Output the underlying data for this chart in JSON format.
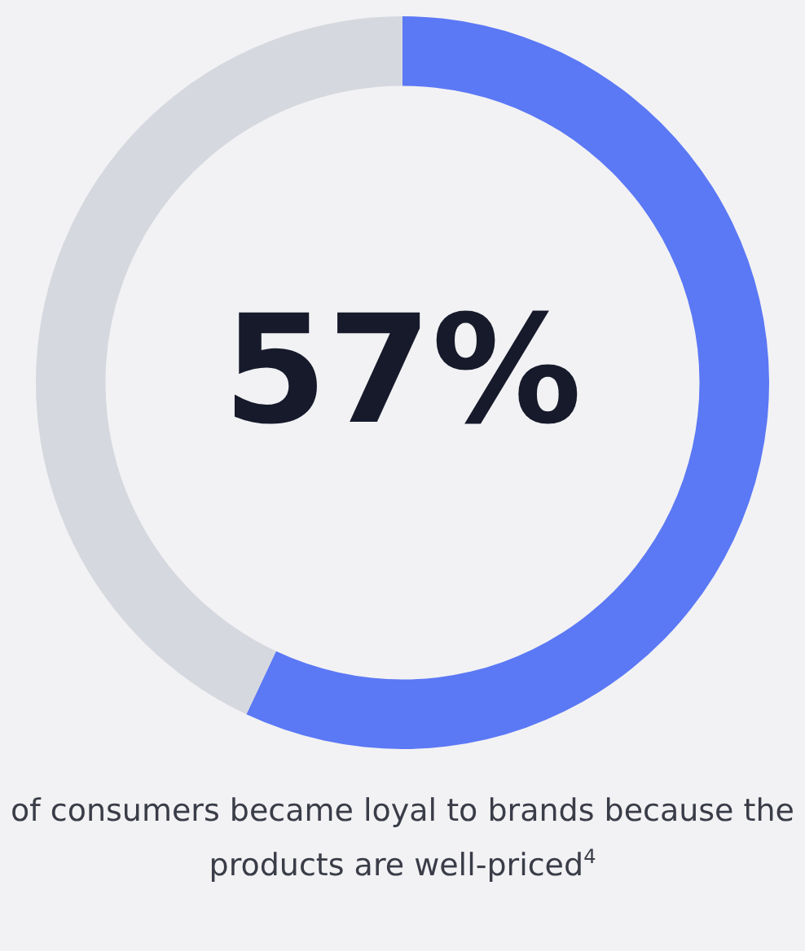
{
  "chart_data": {
    "type": "donut",
    "categories": [
      null,
      null
    ],
    "values": [
      57,
      43
    ],
    "colors": [
      "#5b78f5",
      "#d6d8df"
    ],
    "value_labels": [
      "57%",
      null
    ],
    "annotations": [
      "of consumers became loyal to brands because the products are well-priced$^{4}$"
    ]
  }
}
